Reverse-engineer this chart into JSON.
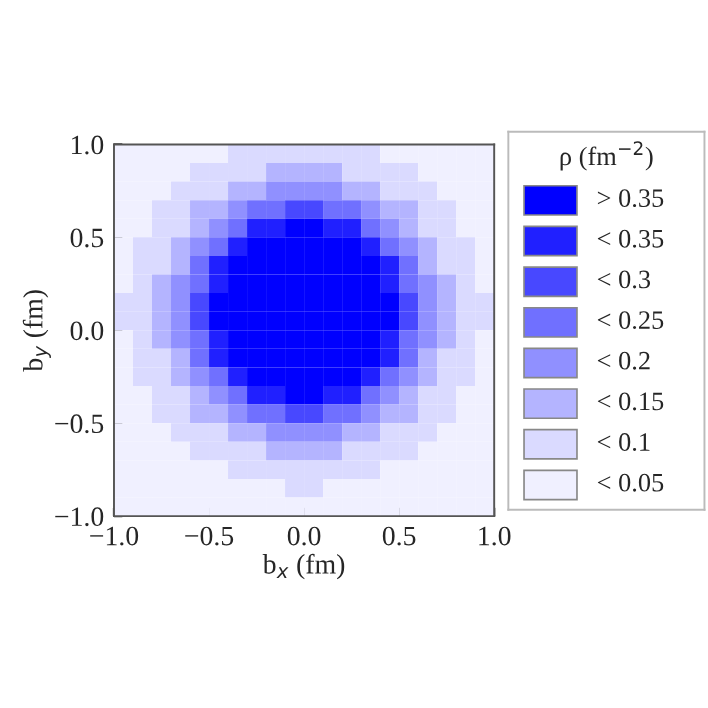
{
  "chart_data": {
    "type": "heatmap",
    "xlabel": "b$_{x}$ (fm)",
    "ylabel": "b$_{y}$ (fm)",
    "clabel": "ρ (fm$^{−2}$)",
    "xlim": [
      -1,
      1
    ],
    "ylim": [
      -1,
      1
    ],
    "xticks": [
      {
        "value": -1,
        "label": "−1.0"
      },
      {
        "value": -0.5,
        "label": "−0.5"
      },
      {
        "value": 0,
        "label": "0.0"
      },
      {
        "value": 0.5,
        "label": "0.5"
      },
      {
        "value": 1,
        "label": "1.0"
      }
    ],
    "yticks": [
      {
        "value": -1,
        "label": "−1.0"
      },
      {
        "value": -0.5,
        "label": "−0.5"
      },
      {
        "value": 0,
        "label": "0.0"
      },
      {
        "value": 0.5,
        "label": "0.5"
      },
      {
        "value": 1,
        "label": "1.0"
      }
    ],
    "cticks": [
      {
        "value": 0.4,
        "label": "> 0.35"
      },
      {
        "value": 0.35,
        "label": "< 0.35"
      },
      {
        "value": 0.3,
        "label": "< 0.3"
      },
      {
        "value": 0.25,
        "label": "< 0.25"
      },
      {
        "value": 0.2,
        "label": "< 0.2"
      },
      {
        "value": 0.15,
        "label": "< 0.15"
      },
      {
        "value": 0.1,
        "label": "< 0.1"
      },
      {
        "value": 0.05,
        "label": "< 0.05"
      }
    ],
    "colors": [
      "#0000ff",
      "#2020ff",
      "#4848ff",
      "#7070ff",
      "#9090ff",
      "#b4b4ff",
      "#dadaff",
      "#f0f0ff"
    ],
    "grid": false,
    "cells": [
      [
        0.05,
        0.05,
        0.05,
        0.05,
        0.05,
        0.05,
        0.1,
        0.1,
        0.1,
        0.1,
        0.1,
        0.1,
        0.1,
        0.1,
        0.05,
        0.05,
        0.05,
        0.05,
        0.05,
        0.05
      ],
      [
        0.05,
        0.05,
        0.05,
        0.05,
        0.1,
        0.1,
        0.1,
        0.1,
        0.15,
        0.15,
        0.15,
        0.15,
        0.1,
        0.1,
        0.1,
        0.1,
        0.05,
        0.05,
        0.05,
        0.05
      ],
      [
        0.05,
        0.05,
        0.05,
        0.1,
        0.1,
        0.1,
        0.15,
        0.15,
        0.2,
        0.2,
        0.2,
        0.2,
        0.15,
        0.15,
        0.1,
        0.1,
        0.1,
        0.05,
        0.05,
        0.05
      ],
      [
        0.05,
        0.05,
        0.1,
        0.1,
        0.15,
        0.15,
        0.2,
        0.25,
        0.25,
        0.3,
        0.3,
        0.25,
        0.25,
        0.2,
        0.15,
        0.15,
        0.1,
        0.1,
        0.05,
        0.05
      ],
      [
        0.05,
        0.05,
        0.1,
        0.1,
        0.15,
        0.2,
        0.25,
        0.35,
        0.35,
        0.4,
        0.4,
        0.35,
        0.35,
        0.25,
        0.2,
        0.15,
        0.1,
        0.1,
        0.05,
        0.05
      ],
      [
        0.05,
        0.1,
        0.1,
        0.15,
        0.2,
        0.25,
        0.35,
        0.4,
        0.4,
        0.4,
        0.4,
        0.4,
        0.4,
        0.35,
        0.25,
        0.2,
        0.15,
        0.1,
        0.1,
        0.05
      ],
      [
        0.05,
        0.1,
        0.1,
        0.15,
        0.25,
        0.35,
        0.4,
        0.4,
        0.4,
        0.4,
        0.4,
        0.4,
        0.4,
        0.4,
        0.35,
        0.25,
        0.15,
        0.1,
        0.1,
        0.05
      ],
      [
        0.05,
        0.1,
        0.15,
        0.2,
        0.25,
        0.35,
        0.4,
        0.4,
        0.4,
        0.4,
        0.4,
        0.4,
        0.4,
        0.4,
        0.35,
        0.25,
        0.2,
        0.15,
        0.1,
        0.05
      ],
      [
        0.1,
        0.1,
        0.15,
        0.2,
        0.3,
        0.4,
        0.4,
        0.4,
        0.4,
        0.4,
        0.4,
        0.4,
        0.4,
        0.4,
        0.4,
        0.3,
        0.2,
        0.15,
        0.1,
        0.1
      ],
      [
        0.1,
        0.1,
        0.15,
        0.2,
        0.3,
        0.4,
        0.4,
        0.4,
        0.4,
        0.4,
        0.4,
        0.4,
        0.4,
        0.4,
        0.4,
        0.3,
        0.2,
        0.15,
        0.1,
        0.1
      ],
      [
        0.05,
        0.1,
        0.15,
        0.2,
        0.25,
        0.35,
        0.4,
        0.4,
        0.4,
        0.4,
        0.4,
        0.4,
        0.4,
        0.4,
        0.35,
        0.25,
        0.2,
        0.15,
        0.1,
        0.05
      ],
      [
        0.05,
        0.1,
        0.1,
        0.15,
        0.25,
        0.35,
        0.4,
        0.4,
        0.4,
        0.4,
        0.4,
        0.4,
        0.4,
        0.4,
        0.35,
        0.25,
        0.15,
        0.1,
        0.1,
        0.05
      ],
      [
        0.05,
        0.1,
        0.1,
        0.15,
        0.2,
        0.25,
        0.35,
        0.4,
        0.4,
        0.4,
        0.4,
        0.4,
        0.4,
        0.35,
        0.25,
        0.2,
        0.15,
        0.1,
        0.1,
        0.05
      ],
      [
        0.05,
        0.05,
        0.1,
        0.1,
        0.15,
        0.2,
        0.25,
        0.35,
        0.35,
        0.4,
        0.4,
        0.35,
        0.35,
        0.25,
        0.2,
        0.15,
        0.1,
        0.1,
        0.05,
        0.05
      ],
      [
        0.05,
        0.05,
        0.1,
        0.1,
        0.15,
        0.15,
        0.2,
        0.25,
        0.25,
        0.3,
        0.3,
        0.25,
        0.25,
        0.2,
        0.15,
        0.15,
        0.1,
        0.1,
        0.05,
        0.05
      ],
      [
        0.05,
        0.05,
        0.05,
        0.1,
        0.1,
        0.1,
        0.15,
        0.15,
        0.2,
        0.2,
        0.2,
        0.2,
        0.15,
        0.15,
        0.1,
        0.1,
        0.1,
        0.05,
        0.05,
        0.05
      ],
      [
        0.05,
        0.05,
        0.05,
        0.05,
        0.1,
        0.1,
        0.1,
        0.1,
        0.15,
        0.15,
        0.15,
        0.15,
        0.1,
        0.1,
        0.1,
        0.1,
        0.05,
        0.05,
        0.05,
        0.05
      ],
      [
        0.05,
        0.05,
        0.05,
        0.05,
        0.05,
        0.05,
        0.1,
        0.1,
        0.1,
        0.1,
        0.1,
        0.1,
        0.1,
        0.1,
        0.05,
        0.05,
        0.05,
        0.05,
        0.05,
        0.05
      ],
      [
        0.05,
        0.05,
        0.05,
        0.05,
        0.05,
        0.05,
        0.05,
        0.05,
        0.05,
        0.1,
        0.1,
        0.05,
        0.05,
        0.05,
        0.05,
        0.05,
        0.05,
        0.05,
        0.05,
        0.05
      ],
      [
        0.05,
        0.05,
        0.05,
        0.05,
        0.05,
        0.05,
        0.05,
        0.05,
        0.05,
        0.05,
        0.05,
        0.05,
        0.05,
        0.05,
        0.05,
        0.05,
        0.05,
        0.05,
        0.05,
        0.05
      ]
    ]
  }
}
